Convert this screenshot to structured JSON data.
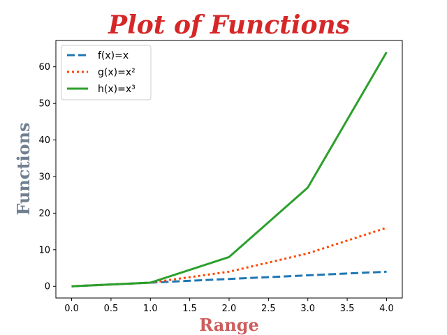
{
  "chart_data": {
    "type": "line",
    "title": "Plot of Functions",
    "xlabel": "Range",
    "ylabel": "Functions",
    "xlim": [
      -0.2,
      4.2
    ],
    "ylim": [
      -3.2,
      67.2
    ],
    "x_ticks": [
      "0.0",
      "0.5",
      "1.0",
      "1.5",
      "2.0",
      "2.5",
      "3.0",
      "3.5",
      "4.0"
    ],
    "y_ticks": [
      "0",
      "10",
      "20",
      "30",
      "40",
      "50",
      "60"
    ],
    "x": [
      0,
      1,
      2,
      3,
      4
    ],
    "series": [
      {
        "name": "f(x)=x",
        "values": [
          0,
          1,
          2,
          3,
          4
        ],
        "color": "#1f77b4",
        "style": "dashed"
      },
      {
        "name": "g(x)=x²",
        "values": [
          0,
          1,
          4,
          9,
          16
        ],
        "color": "#ff4500",
        "style": "dotted"
      },
      {
        "name": "h(x)=x³",
        "values": [
          0,
          1,
          8,
          27,
          64
        ],
        "color": "#2ca02c",
        "style": "solid"
      }
    ],
    "legend_position": "top-left",
    "grid": false,
    "colors": {
      "title": "#d62728",
      "xlabel": "#cd5c5c",
      "ylabel": "#708090"
    }
  }
}
